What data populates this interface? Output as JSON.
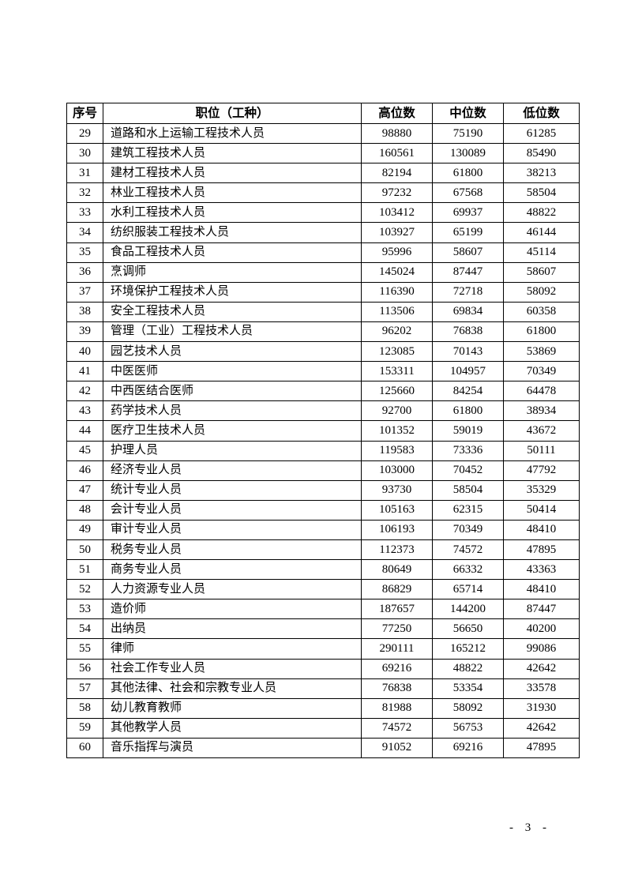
{
  "page": {
    "number_label": "- 3 -"
  },
  "table": {
    "headers": [
      "序号",
      "职位（工种）",
      "高位数",
      "中位数",
      "低位数"
    ],
    "rows": [
      {
        "no": "29",
        "title": "道路和水上运输工程技术人员",
        "high": "98880",
        "mid": "75190",
        "low": "61285"
      },
      {
        "no": "30",
        "title": "建筑工程技术人员",
        "high": "160561",
        "mid": "130089",
        "low": "85490"
      },
      {
        "no": "31",
        "title": "建材工程技术人员",
        "high": "82194",
        "mid": "61800",
        "low": "38213"
      },
      {
        "no": "32",
        "title": "林业工程技术人员",
        "high": "97232",
        "mid": "67568",
        "low": "58504"
      },
      {
        "no": "33",
        "title": "水利工程技术人员",
        "high": "103412",
        "mid": "69937",
        "low": "48822"
      },
      {
        "no": "34",
        "title": "纺织服装工程技术人员",
        "high": "103927",
        "mid": "65199",
        "low": "46144"
      },
      {
        "no": "35",
        "title": "食品工程技术人员",
        "high": "95996",
        "mid": "58607",
        "low": "45114"
      },
      {
        "no": "36",
        "title": "烹调师",
        "high": "145024",
        "mid": "87447",
        "low": "58607"
      },
      {
        "no": "37",
        "title": "环境保护工程技术人员",
        "high": "116390",
        "mid": "72718",
        "low": "58092"
      },
      {
        "no": "38",
        "title": "安全工程技术人员",
        "high": "113506",
        "mid": "69834",
        "low": "60358"
      },
      {
        "no": "39",
        "title": "管理（工业）工程技术人员",
        "high": "96202",
        "mid": "76838",
        "low": "61800"
      },
      {
        "no": "40",
        "title": "园艺技术人员",
        "high": "123085",
        "mid": "70143",
        "low": "53869"
      },
      {
        "no": "41",
        "title": "中医医师",
        "high": "153311",
        "mid": "104957",
        "low": "70349"
      },
      {
        "no": "42",
        "title": "中西医结合医师",
        "high": "125660",
        "mid": "84254",
        "low": "64478"
      },
      {
        "no": "43",
        "title": "药学技术人员",
        "high": "92700",
        "mid": "61800",
        "low": "38934"
      },
      {
        "no": "44",
        "title": "医疗卫生技术人员",
        "high": "101352",
        "mid": "59019",
        "low": "43672"
      },
      {
        "no": "45",
        "title": "护理人员",
        "high": "119583",
        "mid": "73336",
        "low": "50111"
      },
      {
        "no": "46",
        "title": "经济专业人员",
        "high": "103000",
        "mid": "70452",
        "low": "47792"
      },
      {
        "no": "47",
        "title": "统计专业人员",
        "high": "93730",
        "mid": "58504",
        "low": "35329"
      },
      {
        "no": "48",
        "title": "会计专业人员",
        "high": "105163",
        "mid": "62315",
        "low": "50414"
      },
      {
        "no": "49",
        "title": "审计专业人员",
        "high": "106193",
        "mid": "70349",
        "low": "48410"
      },
      {
        "no": "50",
        "title": "税务专业人员",
        "high": "112373",
        "mid": "74572",
        "low": "47895"
      },
      {
        "no": "51",
        "title": "商务专业人员",
        "high": "80649",
        "mid": "66332",
        "low": "43363"
      },
      {
        "no": "52",
        "title": "人力资源专业人员",
        "high": "86829",
        "mid": "65714",
        "low": "48410"
      },
      {
        "no": "53",
        "title": "造价师",
        "high": "187657",
        "mid": "144200",
        "low": "87447"
      },
      {
        "no": "54",
        "title": "出纳员",
        "high": "77250",
        "mid": "56650",
        "low": "40200"
      },
      {
        "no": "55",
        "title": "律师",
        "high": "290111",
        "mid": "165212",
        "low": "99086"
      },
      {
        "no": "56",
        "title": "社会工作专业人员",
        "high": "69216",
        "mid": "48822",
        "low": "42642"
      },
      {
        "no": "57",
        "title": "其他法律、社会和宗教专业人员",
        "high": "76838",
        "mid": "53354",
        "low": "33578"
      },
      {
        "no": "58",
        "title": "幼儿教育教师",
        "high": "81988",
        "mid": "58092",
        "low": "31930"
      },
      {
        "no": "59",
        "title": "其他教学人员",
        "high": "74572",
        "mid": "56753",
        "low": "42642"
      },
      {
        "no": "60",
        "title": "音乐指挥与演员",
        "high": "91052",
        "mid": "69216",
        "low": "47895"
      }
    ]
  }
}
